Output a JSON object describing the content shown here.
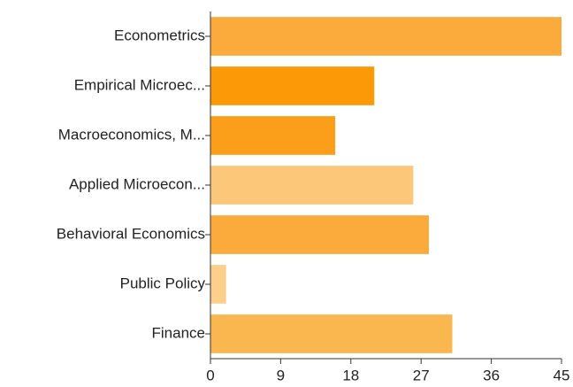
{
  "chart_data": {
    "type": "bar",
    "orientation": "horizontal",
    "categories": [
      "Econometrics",
      "Empirical Microec...",
      "Macroeconomics, M...",
      "Applied Microecon...",
      "Behavioral Economics",
      "Public Policy",
      "Finance"
    ],
    "values": [
      45,
      21,
      16,
      26,
      28,
      2,
      31
    ],
    "colors": [
      "#fbaa3c",
      "#fb9a06",
      "#fb9f1a",
      "#fdc77a",
      "#fbaa3c",
      "#fdcf8a",
      "#fbb74f"
    ],
    "xlim": [
      0,
      45
    ],
    "xticks": [
      0,
      9,
      18,
      27,
      36,
      45
    ],
    "grid": false
  }
}
